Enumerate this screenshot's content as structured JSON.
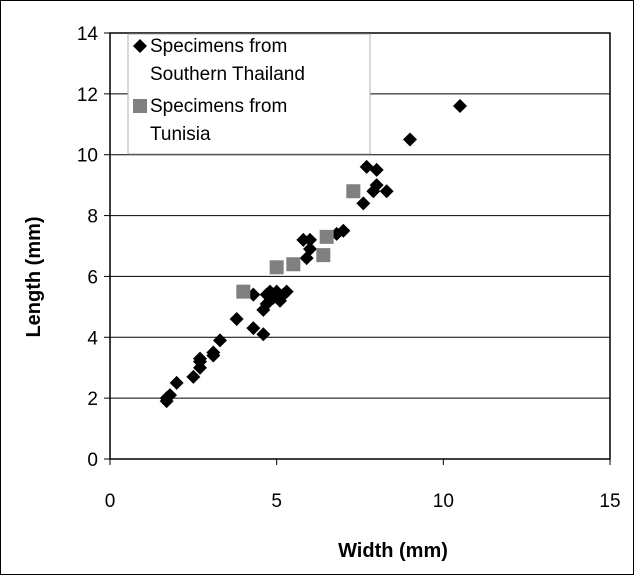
{
  "chart_data": {
    "type": "scatter",
    "title": "",
    "xlabel": "Width (mm)",
    "ylabel": "Length (mm)",
    "xlim": [
      0,
      15
    ],
    "ylim": [
      0,
      14
    ],
    "x_ticks": [
      "0",
      "5",
      "10",
      "15"
    ],
    "y_ticks": [
      "0",
      "2",
      "4",
      "6",
      "8",
      "10",
      "12",
      "14"
    ],
    "grid": "horizontal",
    "legend_position": "top-left",
    "series": [
      {
        "name_lines": [
          "Specimens from",
          "Southern Thailand"
        ],
        "marker": "diamond",
        "color": "#000000",
        "points": [
          [
            1.7,
            1.9
          ],
          [
            1.7,
            2.0
          ],
          [
            1.8,
            2.1
          ],
          [
            2.0,
            2.5
          ],
          [
            2.5,
            2.7
          ],
          [
            2.7,
            3.0
          ],
          [
            2.7,
            3.2
          ],
          [
            2.7,
            3.3
          ],
          [
            3.1,
            3.4
          ],
          [
            3.1,
            3.5
          ],
          [
            3.3,
            3.9
          ],
          [
            3.8,
            4.6
          ],
          [
            4.3,
            4.3
          ],
          [
            4.3,
            5.4
          ],
          [
            4.6,
            4.1
          ],
          [
            4.6,
            4.9
          ],
          [
            4.7,
            5.1
          ],
          [
            4.7,
            5.4
          ],
          [
            4.8,
            5.5
          ],
          [
            4.9,
            5.3
          ],
          [
            5.0,
            5.5
          ],
          [
            5.1,
            5.3
          ],
          [
            5.1,
            5.2
          ],
          [
            5.2,
            5.4
          ],
          [
            5.3,
            5.5
          ],
          [
            5.8,
            7.2
          ],
          [
            5.9,
            6.6
          ],
          [
            6.0,
            6.9
          ],
          [
            6.0,
            7.2
          ],
          [
            6.8,
            7.4
          ],
          [
            7.0,
            7.5
          ],
          [
            7.6,
            8.4
          ],
          [
            7.7,
            9.6
          ],
          [
            7.9,
            8.8
          ],
          [
            8.0,
            9.0
          ],
          [
            8.0,
            9.5
          ],
          [
            8.3,
            8.8
          ],
          [
            9.0,
            10.5
          ],
          [
            10.5,
            11.6
          ]
        ]
      },
      {
        "name_lines": [
          "Specimens from",
          "Tunisia"
        ],
        "marker": "square",
        "color": "#808080",
        "points": [
          [
            4.0,
            5.5
          ],
          [
            5.0,
            6.3
          ],
          [
            5.5,
            6.4
          ],
          [
            6.4,
            6.7
          ],
          [
            6.5,
            7.3
          ],
          [
            7.3,
            8.8
          ]
        ]
      }
    ]
  }
}
